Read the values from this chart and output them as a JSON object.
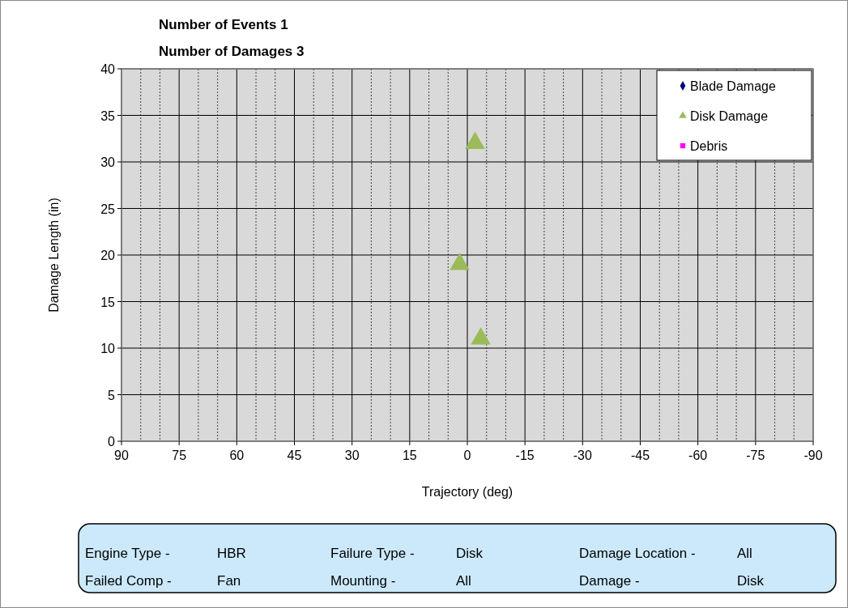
{
  "chart_data": {
    "type": "scatter",
    "title": "Number of Events 1",
    "subtitle": "Number of Damages 3",
    "xlabel": "Trajectory (deg)",
    "ylabel": "Damage  Length (in)",
    "xlim": [
      90,
      -90
    ],
    "xticks": [
      90,
      {
        "value": 85,
        "label": null
      },
      {
        "value": 80,
        "label": null
      },
      75,
      {
        "value": 70,
        "label": null
      },
      {
        "value": 65,
        "label": null
      },
      60,
      {
        "value": 55,
        "label": null
      },
      {
        "value": 50,
        "label": null
      },
      45,
      {
        "value": 40,
        "label": null
      },
      {
        "value": 35,
        "label": null
      },
      30,
      {
        "value": 25,
        "label": null
      },
      {
        "value": 20,
        "label": null
      },
      15,
      {
        "value": 10,
        "label": null
      },
      {
        "value": 5,
        "label": null
      },
      0,
      {
        "value": -5,
        "label": null
      },
      {
        "value": -10,
        "label": null
      },
      -15,
      {
        "value": -20,
        "label": null
      },
      {
        "value": -25,
        "label": null
      },
      -30,
      {
        "value": -35,
        "label": null
      },
      {
        "value": -40,
        "label": null
      },
      -45,
      {
        "value": -50,
        "label": null
      },
      {
        "value": -55,
        "label": null
      },
      -60,
      {
        "value": -65,
        "label": null
      },
      {
        "value": -70,
        "label": null
      },
      -75,
      {
        "value": -80,
        "label": null
      },
      {
        "value": -85,
        "label": null
      },
      -90
    ],
    "ylim": [
      0,
      40
    ],
    "yticks": [
      0,
      5,
      10,
      15,
      20,
      25,
      30,
      35,
      40
    ],
    "grid": true,
    "legend": "top right",
    "series": [
      {
        "name": "Blade Damage",
        "color": "#000080",
        "marker": "diamond"
      },
      {
        "name": "Disk Damage",
        "color": "#9bbb59",
        "marker": "triangle",
        "x": [
          -2,
          2,
          -3.5
        ],
        "values": [
          32,
          19,
          11
        ]
      },
      {
        "name": "Debris",
        "color": "#ff00ff",
        "marker": "square"
      }
    ],
    "annotations": [
      "Engine Type -",
      "HBR",
      "Failure Type -",
      "Disk",
      "Damage Location -",
      "All",
      "Failed Comp -",
      "Fan",
      "Mounting -",
      "All",
      "Damage -",
      "Disk"
    ]
  }
}
